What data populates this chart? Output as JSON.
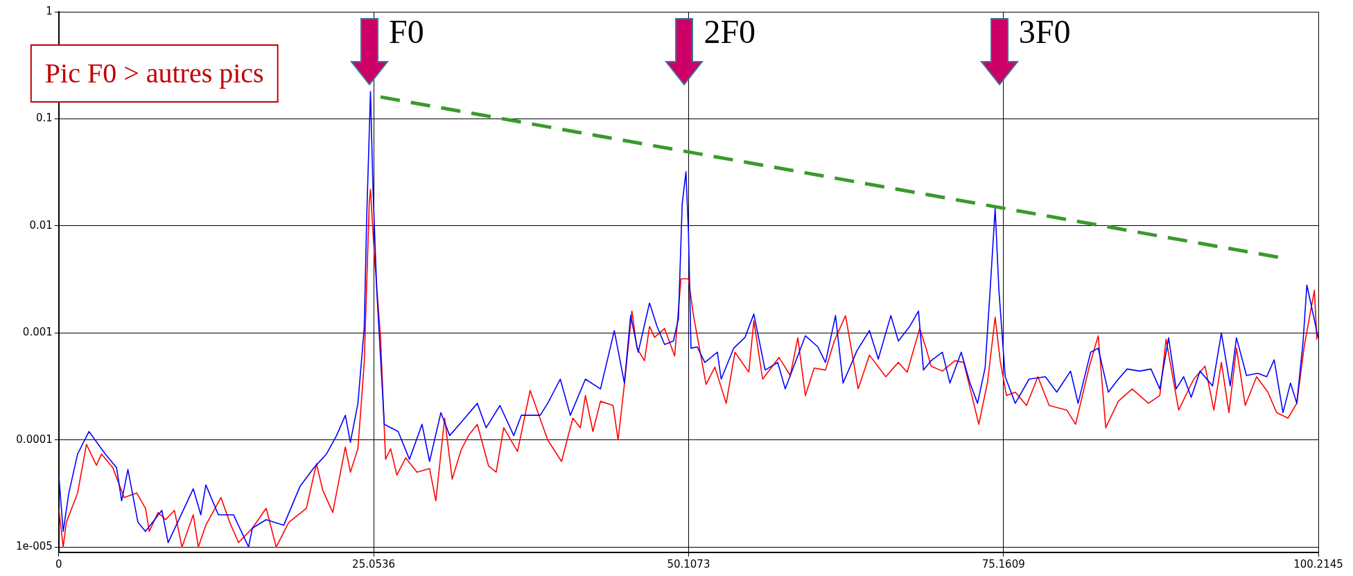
{
  "chart_data": {
    "type": "line",
    "log": "y",
    "grid": true,
    "legend": false,
    "marker": "none",
    "xlim": [
      0,
      100.2145
    ],
    "xticks": [
      0,
      25.0536,
      50.1073,
      75.1609,
      100.2145
    ],
    "ylim": [
      8.9e-06,
      1
    ],
    "yticks": [
      1,
      0.1,
      0.01,
      0.001,
      0.0001,
      {
        "value": 1e-05,
        "label": "1e-005"
      }
    ],
    "annotations": [
      "Pic F0 > autres pics",
      "F0",
      "2F0",
      "3F0"
    ],
    "series": [
      {
        "color": "#0000ff",
        "x": [
          0,
          0.35,
          0.8,
          1.5,
          2.4,
          3.7,
          4.6,
          5.0,
          5.5,
          6.3,
          6.9,
          8.2,
          8.7,
          10.7,
          11.3,
          11.7,
          12.7,
          13.9,
          15.1,
          15.4,
          16.5,
          17.9,
          19.2,
          20.3,
          21.3,
          22.1,
          22.8,
          23.2,
          23.8,
          24.3,
          24.5,
          24.8,
          25.0,
          25.3,
          25.9,
          27.0,
          27.9,
          28.9,
          29.5,
          30.4,
          31.1,
          32.1,
          33.3,
          34.0,
          35.1,
          36.2,
          36.8,
          38.3,
          38.9,
          39.9,
          40.7,
          41.9,
          43.1,
          44.2,
          45.0,
          45.5,
          46.1,
          47.0,
          47.6,
          48.2,
          48.9,
          49.3,
          49.6,
          49.9,
          50.1,
          50.3,
          50.8,
          51.4,
          52.4,
          52.7,
          53.7,
          54.6,
          55.3,
          56.2,
          57.2,
          57.8,
          59.4,
          60.4,
          61.0,
          61.8,
          62.4,
          63.5,
          64.5,
          65.2,
          66.2,
          66.8,
          67.7,
          68.4,
          68.8,
          69.4,
          70.3,
          70.9,
          71.8,
          72.5,
          73.1,
          73.7,
          74.1,
          74.5,
          74.8,
          75.3,
          76.1,
          77.2,
          78.5,
          79.4,
          80.5,
          81.1,
          82.1,
          82.7,
          83.5,
          84.3,
          85.0,
          86.0,
          86.9,
          87.6,
          88.3,
          88.9,
          89.5,
          90.1,
          90.8,
          91.8,
          92.5,
          93.2,
          93.7,
          94.5,
          95.4,
          96.1,
          96.7,
          97.4,
          98.0,
          98.5,
          99.0,
          99.3,
          99.7,
          100.2
        ],
        "values": [
          4.7e-05,
          1.4e-05,
          3.2e-05,
          7.4e-05,
          0.00012,
          7.4e-05,
          5.5e-05,
          2.7e-05,
          5.3e-05,
          1.7e-05,
          1.4e-05,
          2.2e-05,
          1.1e-05,
          3.5e-05,
          2e-05,
          3.8e-05,
          2e-05,
          2e-05,
          1e-05,
          1.5e-05,
          1.8e-05,
          1.6e-05,
          3.7e-05,
          5.5e-05,
          7.4e-05,
          0.00011,
          0.00017,
          9.5e-05,
          0.00022,
          0.0011,
          0.012,
          0.18,
          0.022,
          0.0025,
          0.00014,
          0.00012,
          6.6e-05,
          0.00014,
          6.3e-05,
          0.00018,
          0.00011,
          0.00015,
          0.00022,
          0.00013,
          0.00021,
          0.00011,
          0.00017,
          0.00017,
          0.00022,
          0.00037,
          0.00017,
          0.00037,
          0.0003,
          0.00105,
          0.00034,
          0.00145,
          0.00066,
          0.0019,
          0.00115,
          0.00078,
          0.00084,
          0.00135,
          0.016,
          0.032,
          0.0086,
          0.00072,
          0.00074,
          0.00053,
          0.00066,
          0.00037,
          0.00072,
          0.00091,
          0.0015,
          0.00045,
          0.00053,
          0.0003,
          0.00094,
          0.00074,
          0.00053,
          0.00145,
          0.00034,
          0.00068,
          0.00105,
          0.00057,
          0.00145,
          0.00084,
          0.00115,
          0.0016,
          0.00045,
          0.00055,
          0.00066,
          0.00034,
          0.00066,
          0.00034,
          0.00022,
          0.00047,
          0.0025,
          0.0145,
          0.0025,
          0.00039,
          0.00022,
          0.00037,
          0.00039,
          0.00028,
          0.00044,
          0.00022,
          0.00066,
          0.00072,
          0.00028,
          0.00037,
          0.00046,
          0.00044,
          0.00046,
          0.0003,
          0.0009,
          0.0003,
          0.00039,
          0.00025,
          0.00044,
          0.00032,
          0.001,
          0.00032,
          0.0009,
          0.0004,
          0.00042,
          0.00039,
          0.00056,
          0.00018,
          0.00034,
          0.00022,
          0.00083,
          0.0028,
          0.0017,
          0.0009
        ]
      },
      {
        "color": "#ff0000",
        "x": [
          0,
          0.35,
          0.6,
          1.5,
          2.2,
          3.0,
          3.4,
          4.3,
          5.2,
          6.2,
          6.9,
          7.2,
          7.9,
          8.5,
          9.2,
          9.8,
          10.7,
          11.1,
          11.7,
          12.9,
          13.6,
          14.3,
          15.4,
          16.5,
          17.3,
          18.3,
          19.7,
          20.5,
          21.0,
          21.8,
          22.8,
          23.2,
          23.8,
          24.3,
          24.7,
          24.8,
          25.1,
          25.6,
          26.0,
          26.4,
          26.9,
          27.6,
          28.5,
          29.5,
          30.0,
          30.7,
          31.3,
          32.0,
          32.6,
          33.3,
          34.2,
          34.8,
          35.4,
          36.5,
          37.5,
          38.9,
          40.0,
          40.9,
          41.5,
          41.9,
          42.5,
          43.1,
          44.1,
          44.5,
          45.0,
          45.6,
          46.0,
          46.6,
          47.0,
          47.4,
          48.2,
          49.0,
          49.5,
          50.1,
          50.5,
          51.5,
          52.2,
          53.1,
          53.8,
          54.9,
          55.3,
          56.0,
          57.3,
          58.2,
          58.8,
          59.4,
          60.1,
          61.0,
          61.7,
          62.6,
          63.6,
          64.5,
          65.8,
          66.8,
          67.5,
          68.5,
          69.0,
          69.4,
          70.3,
          71.3,
          72.0,
          73.2,
          73.9,
          74.5,
          74.9,
          75.4,
          76.1,
          77.0,
          77.9,
          78.8,
          80.2,
          80.9,
          82.0,
          82.7,
          83.3,
          84.3,
          85.4,
          86.7,
          87.6,
          88.1,
          89.1,
          90.3,
          91.2,
          91.9,
          92.5,
          93.1,
          93.7,
          94.4,
          95.3,
          96.2,
          96.9,
          97.8,
          98.5,
          99.1,
          99.9,
          100.1
        ],
        "values": [
          2.3e-05,
          1e-05,
          1.7e-05,
          3.2e-05,
          9.1e-05,
          5.8e-05,
          7.4e-05,
          5.5e-05,
          2.9e-05,
          3.2e-05,
          2.3e-05,
          1.4e-05,
          2.1e-05,
          1.8e-05,
          2.2e-05,
          1e-05,
          2e-05,
          1e-05,
          1.6e-05,
          2.9e-05,
          1.7e-05,
          1.1e-05,
          1.5e-05,
          2.3e-05,
          1e-05,
          1.7e-05,
          2.3e-05,
          6e-05,
          3.4e-05,
          2.1e-05,
          8.6e-05,
          5e-05,
          8.3e-05,
          0.00052,
          0.016,
          0.022,
          0.0055,
          0.0009,
          6.6e-05,
          8.3e-05,
          4.7e-05,
          6.8e-05,
          5e-05,
          5.4e-05,
          2.7e-05,
          0.00016,
          4.3e-05,
          8e-05,
          0.00011,
          0.00014,
          5.7e-05,
          5e-05,
          0.00013,
          7.8e-05,
          0.00029,
          0.0001,
          6.3e-05,
          0.00016,
          0.00013,
          0.00026,
          0.00012,
          0.00023,
          0.00021,
          0.0001,
          0.00033,
          0.0016,
          0.00072,
          0.00055,
          0.00115,
          0.00091,
          0.0011,
          0.00061,
          0.0032,
          0.0032,
          0.00145,
          0.00033,
          0.00048,
          0.00022,
          0.00066,
          0.00043,
          0.0013,
          0.00037,
          0.00059,
          0.0004,
          0.0009,
          0.00026,
          0.00047,
          0.00045,
          0.00084,
          0.00145,
          0.0003,
          0.00062,
          0.00039,
          0.00053,
          0.00043,
          0.0011,
          0.00072,
          0.00049,
          0.00044,
          0.00055,
          0.00053,
          0.00014,
          0.00035,
          0.0014,
          0.00055,
          0.00026,
          0.00028,
          0.00021,
          0.00039,
          0.00021,
          0.00019,
          0.00014,
          0.00049,
          0.00094,
          0.00013,
          0.00023,
          0.0003,
          0.00022,
          0.00026,
          0.00087,
          0.00019,
          0.00037,
          0.00049,
          0.00019,
          0.00053,
          0.00018,
          0.00072,
          0.00021,
          0.00039,
          0.00028,
          0.00018,
          0.00016,
          0.00022,
          0.00076,
          0.0025,
          0.00086
        ]
      },
      {
        "type": "line",
        "color": "#3a9a2c",
        "line_style": "dashed",
        "x": [
          25.6,
          97.0
        ],
        "values": [
          0.16,
          0.0051
        ]
      }
    ]
  }
}
